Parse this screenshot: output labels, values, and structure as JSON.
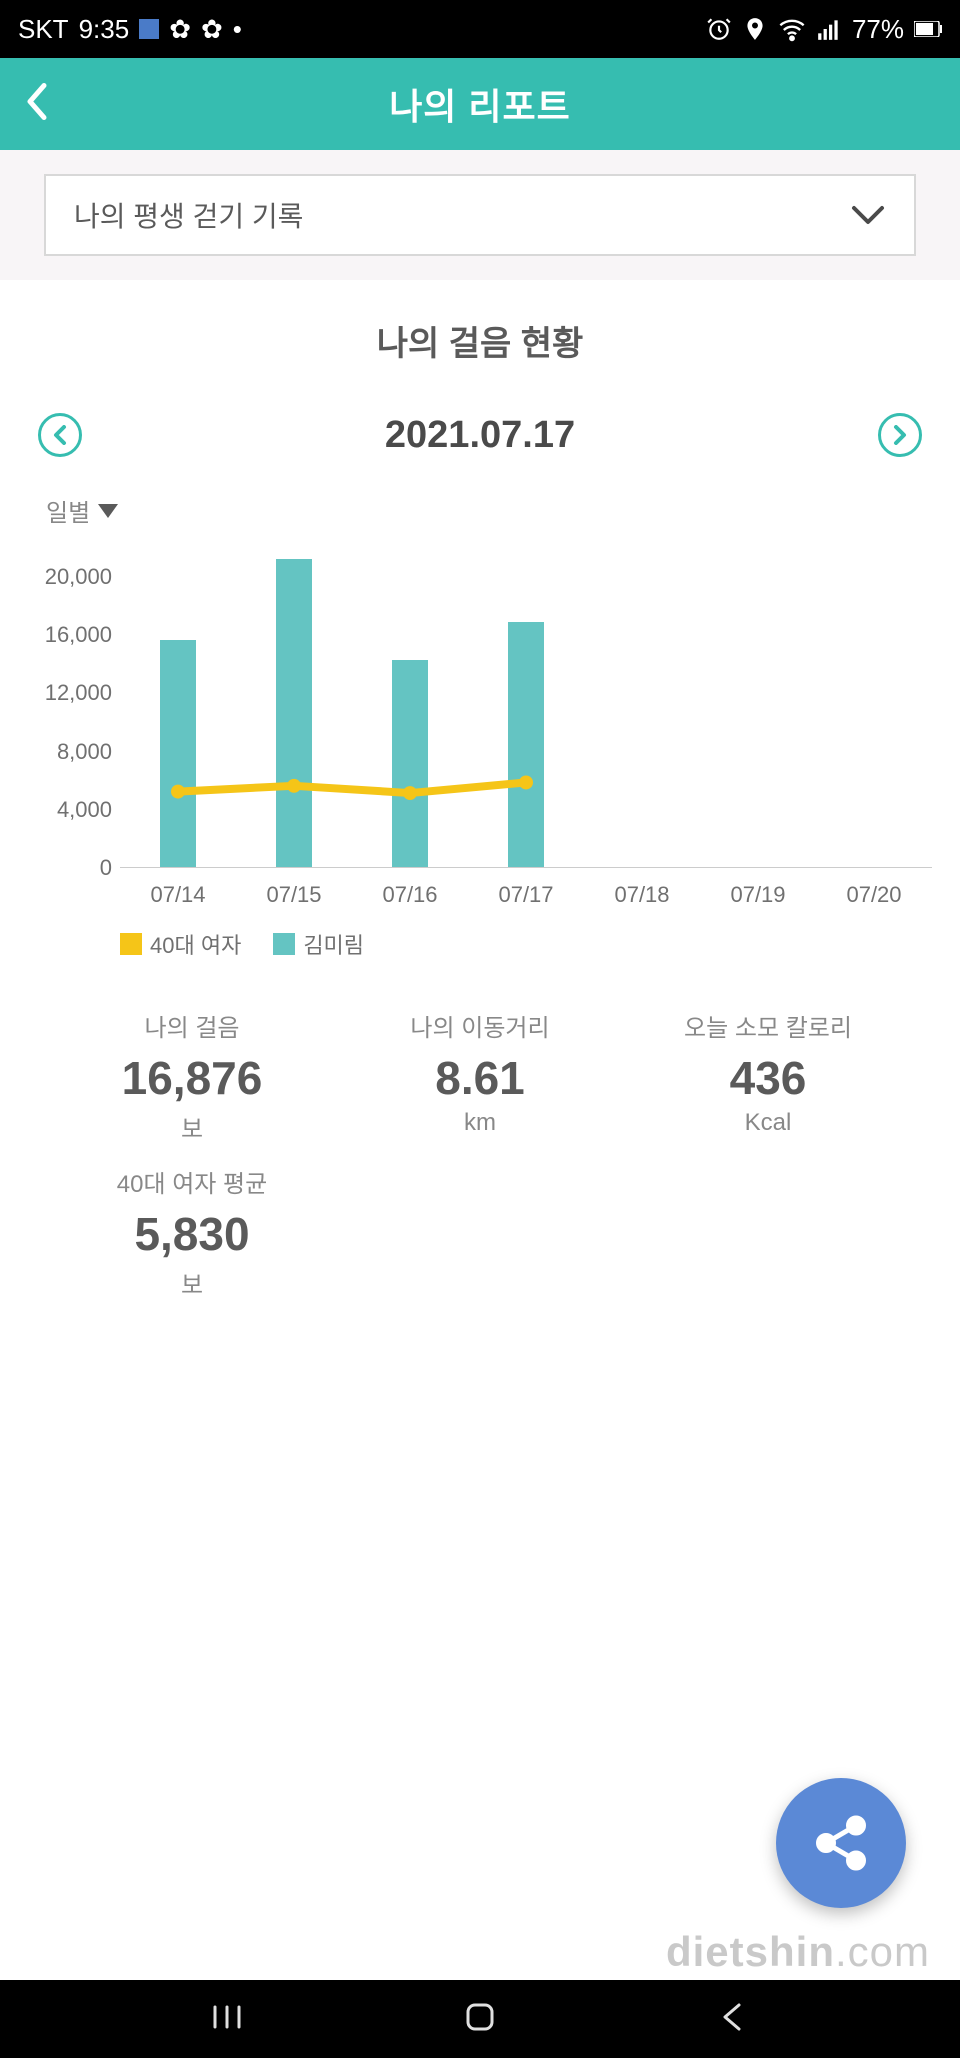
{
  "status": {
    "carrier": "SKT",
    "time": "9:35",
    "battery": "77%"
  },
  "header": {
    "title": "나의 리포트"
  },
  "dropdown": {
    "label": "나의 평생 걷기 기록"
  },
  "section_title": "나의 걸음 현황",
  "date_nav": {
    "date": "2021.07.17"
  },
  "period": {
    "label": "일별"
  },
  "chart": {
    "type": "bar+line",
    "ylim": [
      0,
      22000
    ],
    "yticks": [
      0,
      4000,
      8000,
      12000,
      16000,
      20000
    ],
    "ytick_labels": [
      "0",
      "4,000",
      "8,000",
      "12,000",
      "16,000",
      "20,000"
    ],
    "categories": [
      "07/14",
      "07/15",
      "07/16",
      "07/17",
      "07/18",
      "07/19",
      "07/20"
    ],
    "bar_series": {
      "name": "김미림",
      "color": "#64c4c2",
      "values": [
        15600,
        21200,
        14200,
        16876,
        null,
        null,
        null
      ]
    },
    "line_series": {
      "name": "40대 여자",
      "color": "#f5c518",
      "values": [
        5200,
        5600,
        5100,
        5830,
        null,
        null,
        null
      ]
    },
    "background_color": "#ffffff",
    "axis_color": "#707070"
  },
  "legend": {
    "items": [
      {
        "label": "40대 여자",
        "color": "#f5c518"
      },
      {
        "label": "김미림",
        "color": "#64c4c2"
      }
    ]
  },
  "stats": [
    {
      "label": "나의 걸음",
      "value": "16,876",
      "unit": "보"
    },
    {
      "label": "나의 이동거리",
      "value": "8.61",
      "unit": "km"
    },
    {
      "label": "오늘 소모 칼로리",
      "value": "436",
      "unit": "Kcal"
    },
    {
      "label": "40대 여자 평균",
      "value": "5,830",
      "unit": "보"
    }
  ],
  "watermark": {
    "bold": "dietshin",
    "rest": ".com"
  },
  "colors": {
    "accent": "#36bdb0",
    "bar": "#64c4c2",
    "line": "#f5c518",
    "fab": "#5b89d6"
  }
}
